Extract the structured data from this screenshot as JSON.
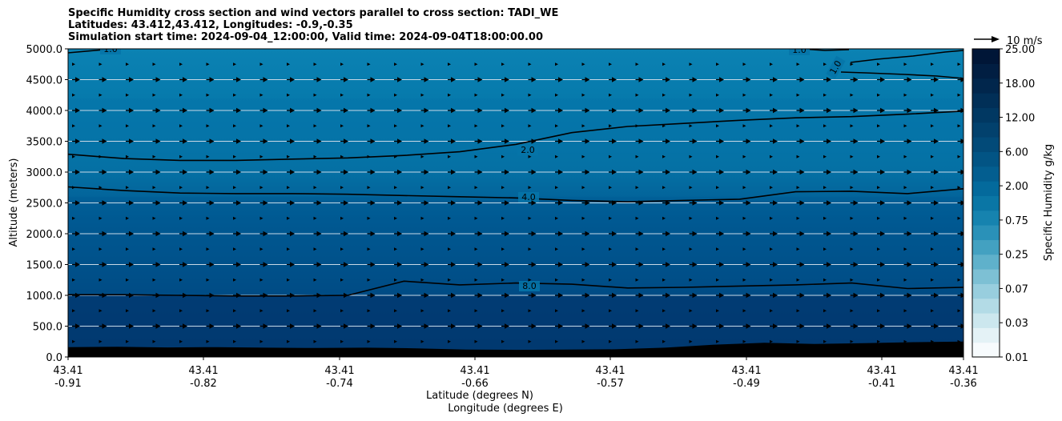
{
  "chart_data": {
    "type": "heatmap",
    "title_lines": [
      "Specific Humidity cross section and wind vectors parallel to cross section: TADI_WE",
      "Latitudes: 43.412,43.412, Longitudes: -0.9,-0.35",
      "Simulation start time: 2024-09-04_12:00:00, Valid time: 2024-09-04T18:00:00.00"
    ],
    "ylabel": "Altitude (meters)",
    "xlabel_lines": [
      "Latitude (degrees N)",
      "Longitude (degrees E)"
    ],
    "ylim": [
      0,
      5000
    ],
    "yticks": [
      "0.0",
      "500.0",
      "1000.0",
      "1500.0",
      "2000.0",
      "2500.0",
      "3000.0",
      "3500.0",
      "4000.0",
      "4500.0",
      "5000.0"
    ],
    "xticks": [
      {
        "lat": "43.41",
        "lon": "-0.91"
      },
      {
        "lat": "43.41",
        "lon": "-0.82"
      },
      {
        "lat": "43.41",
        "lon": "-0.74"
      },
      {
        "lat": "43.41",
        "lon": "-0.66"
      },
      {
        "lat": "43.41",
        "lon": "-0.57"
      },
      {
        "lat": "43.41",
        "lon": "-0.49"
      },
      {
        "lat": "43.41",
        "lon": "-0.41"
      },
      {
        "lat": "43.41",
        "lon": "-0.36"
      }
    ],
    "colorbar": {
      "label": "Specific Humidity g/kg",
      "ticks": [
        "0.01",
        "0.03",
        "0.07",
        "0.25",
        "0.75",
        "2.00",
        "6.00",
        "12.00",
        "18.00",
        "25.00"
      ]
    },
    "quiver_key": "10 m/s",
    "contour_labels": [
      "1.0",
      "1.0",
      "1.0",
      "2.0",
      "4.0",
      "8.0"
    ],
    "contours": [
      {
        "level": "8.0",
        "alt": [
          1010,
          1010,
          1000,
          990,
          990,
          1000,
          1230,
          1170,
          1200,
          1180,
          1120,
          1130,
          1150,
          1170,
          1200,
          1110,
          1130
        ]
      },
      {
        "level": "4.0",
        "alt": [
          2760,
          2700,
          2660,
          2650,
          2650,
          2640,
          2620,
          2600,
          2580,
          2540,
          2520,
          2540,
          2560,
          2680,
          2690,
          2650,
          2730
        ]
      },
      {
        "level": "2.0",
        "alt": [
          3290,
          3220,
          3190,
          3190,
          3210,
          3230,
          3270,
          3330,
          3450,
          3640,
          3740,
          3790,
          3840,
          3880,
          3900,
          3940,
          3990
        ]
      }
    ],
    "colors": {
      "band_low": "#01356b",
      "band_mid": "#015a93",
      "band_upper": "#0574a8",
      "band_top": "#0b82b3",
      "terrain": "#000000",
      "gridline": "#c8d8e6",
      "colorbar_scale": [
        "#f7fbfd",
        "#e4f2f6",
        "#cce7ee",
        "#b3dbe6",
        "#98cede",
        "#7dc0d4",
        "#5fb1cb",
        "#43a1c1",
        "#2a91b8",
        "#1683af",
        "#0a76a5",
        "#046a9c",
        "#035e90",
        "#025484",
        "#024a78",
        "#02416d",
        "#013862",
        "#012f57",
        "#01264c",
        "#011e42",
        "#001637"
      ]
    }
  }
}
